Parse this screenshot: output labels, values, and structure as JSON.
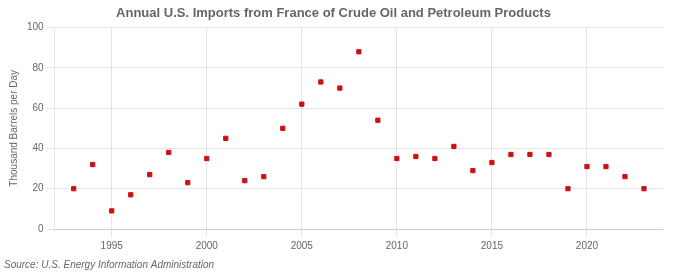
{
  "chart_data": {
    "type": "scatter",
    "title": "Annual U.S. Imports from France of Crude Oil and Petroleum Products",
    "ylabel": "Thousand Barrels per Day",
    "source": "Source: U.S. Energy Information Administration",
    "x": [
      1993,
      1994,
      1995,
      1996,
      1997,
      1998,
      1999,
      2000,
      2001,
      2002,
      2003,
      2004,
      2005,
      2006,
      2007,
      2008,
      2009,
      2010,
      2011,
      2012,
      2013,
      2014,
      2015,
      2016,
      2017,
      2018,
      2019,
      2020,
      2021,
      2022,
      2023
    ],
    "values": [
      20,
      32,
      9,
      17,
      27,
      38,
      23,
      35,
      45,
      24,
      26,
      50,
      62,
      73,
      70,
      88,
      54,
      35,
      36,
      35,
      41,
      29,
      33,
      37,
      37,
      37,
      20,
      31,
      31,
      26,
      20
    ],
    "color": "#cc1111",
    "marker": "square",
    "xlim": [
      1992,
      2024
    ],
    "ylim": [
      0,
      100
    ],
    "xticks": [
      1995,
      2000,
      2005,
      2010,
      2015,
      2020
    ],
    "yticks": [
      0,
      20,
      40,
      60,
      80,
      100
    ],
    "grid": true
  }
}
